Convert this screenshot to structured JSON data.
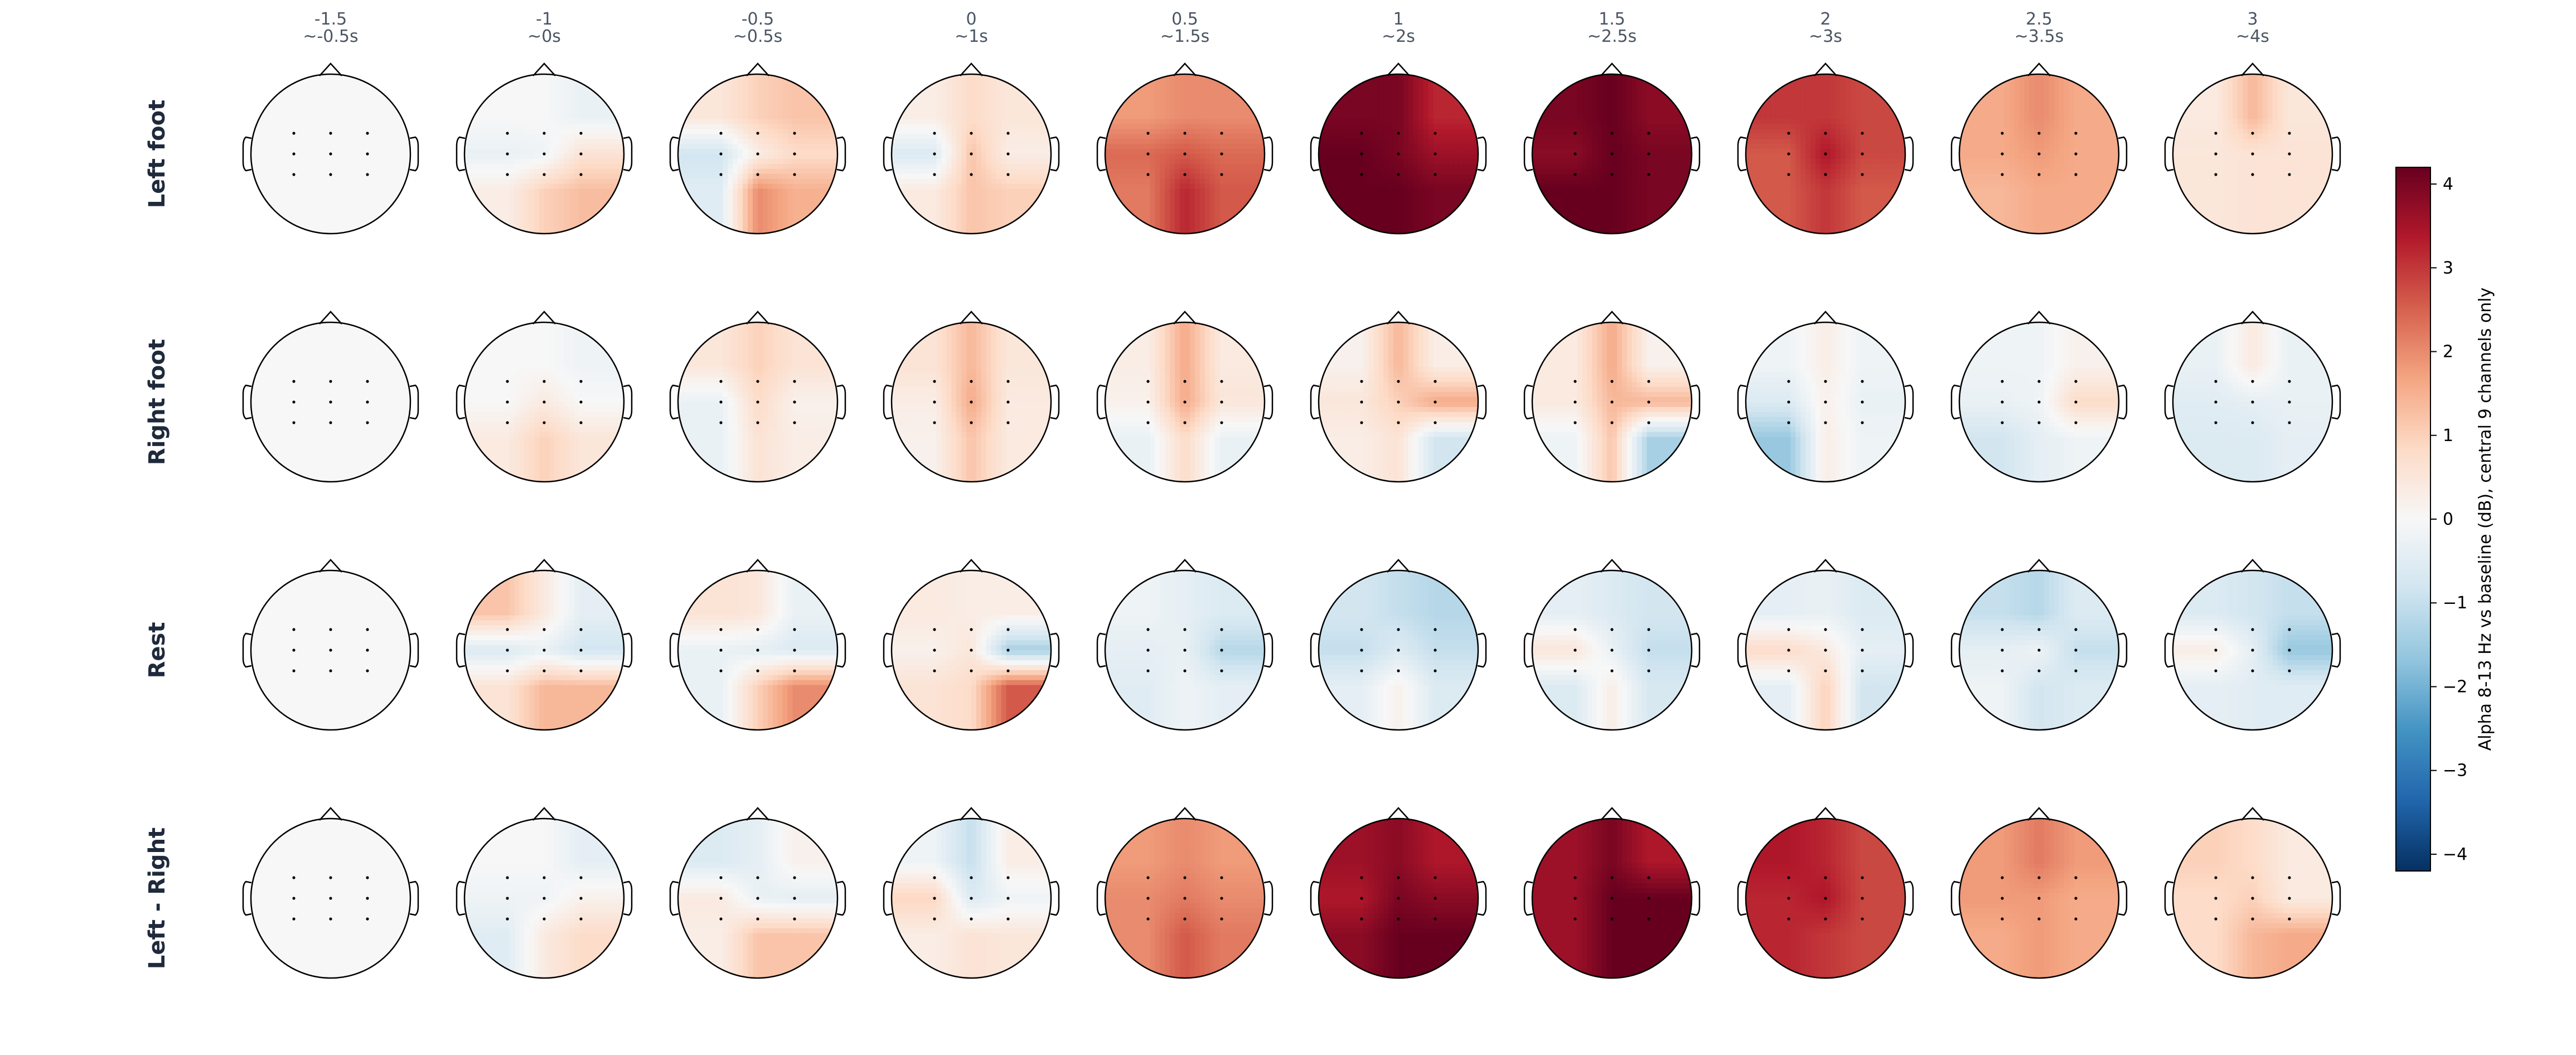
{
  "chart_data": {
    "type": "heatmap",
    "description_kind": "topomap_grid",
    "colorbar": {
      "label": "Alpha 8-13 Hz vs baseline (dB), central 9 channels only",
      "range": [
        -4.2,
        4.2
      ],
      "ticks": [
        "4",
        "3",
        "2",
        "1",
        "0",
        "−1",
        "−2",
        "−3",
        "−4"
      ],
      "tick_values": [
        4,
        3,
        2,
        1,
        0,
        -1,
        -2,
        -3,
        -4
      ],
      "colormap": "RdBu_r"
    },
    "columns": [
      {
        "t": "-1.5",
        "sub": "~-0.5s"
      },
      {
        "t": "-1",
        "sub": "~0s"
      },
      {
        "t": "-0.5",
        "sub": "~0.5s"
      },
      {
        "t": "0",
        "sub": "~1s"
      },
      {
        "t": "0.5",
        "sub": "~1.5s"
      },
      {
        "t": "1",
        "sub": "~2s"
      },
      {
        "t": "1.5",
        "sub": "~2.5s"
      },
      {
        "t": "2",
        "sub": "~3s"
      },
      {
        "t": "2.5",
        "sub": "~3.5s"
      },
      {
        "t": "3",
        "sub": "~4s"
      }
    ],
    "rows": [
      {
        "name": "Left foot",
        "maps": [
          [
            0,
            0,
            0,
            0,
            0,
            0,
            0,
            0,
            0
          ],
          [
            0,
            0,
            -0.3,
            -0.3,
            -0.2,
            0.6,
            0.3,
            1.0,
            1.3
          ],
          [
            0.5,
            1.0,
            1.2,
            -0.8,
            0.3,
            0.8,
            -0.5,
            2.0,
            1.5
          ],
          [
            0.3,
            0.8,
            0.5,
            -0.6,
            1.2,
            0.3,
            0.4,
            1.2,
            1.0
          ],
          [
            1.8,
            2.0,
            2.0,
            2.4,
            2.6,
            2.4,
            2.2,
            3.2,
            2.6
          ],
          [
            4.0,
            4.0,
            3.2,
            4.2,
            4.0,
            3.6,
            4.2,
            4.2,
            4.0
          ],
          [
            4.0,
            4.2,
            3.8,
            3.8,
            4.2,
            4.0,
            4.2,
            4.2,
            4.0
          ],
          [
            3.0,
            3.0,
            2.8,
            2.6,
            3.4,
            2.8,
            2.6,
            3.0,
            2.6
          ],
          [
            1.6,
            2.0,
            1.6,
            1.6,
            1.8,
            1.6,
            1.4,
            1.6,
            1.6
          ],
          [
            0.4,
            1.4,
            0.5,
            0.5,
            0.6,
            0.6,
            0.5,
            0.6,
            0.6
          ]
        ]
      },
      {
        "name": "Right foot",
        "maps": [
          [
            0,
            0,
            0,
            0,
            0,
            0,
            0,
            0,
            0
          ],
          [
            0,
            0,
            -0.2,
            0,
            0.4,
            0,
            0.4,
            1.0,
            0.5
          ],
          [
            0.5,
            1.0,
            0.6,
            -0.3,
            0.8,
            0.2,
            -0.3,
            0.6,
            0.3
          ],
          [
            0.6,
            1.4,
            0.5,
            0.3,
            1.6,
            0.4,
            0.2,
            1.2,
            0.4
          ],
          [
            0.3,
            1.6,
            0.4,
            0.2,
            1.6,
            0.5,
            -0.3,
            0.8,
            -0.3
          ],
          [
            0.2,
            1.4,
            0.3,
            0.5,
            1.0,
            1.6,
            0.3,
            0.6,
            -0.8
          ],
          [
            0.4,
            1.6,
            0.2,
            0.4,
            1.4,
            1.4,
            -0.2,
            1.2,
            -1.4
          ],
          [
            -0.2,
            0.3,
            -0.2,
            -0.6,
            0.2,
            -0.3,
            -1.6,
            0.3,
            -0.2
          ],
          [
            -0.2,
            -0.2,
            0.2,
            -0.3,
            -0.2,
            0.8,
            -0.8,
            -0.4,
            -0.2
          ],
          [
            -0.3,
            0.4,
            -0.3,
            -0.5,
            -0.4,
            -0.3,
            -0.6,
            -0.6,
            -0.4
          ]
        ]
      },
      {
        "name": "Rest",
        "maps": [
          [
            0,
            0,
            0,
            0,
            0,
            0,
            0,
            0,
            0
          ],
          [
            1.2,
            0.4,
            -0.4,
            -0.6,
            -0.3,
            -0.8,
            0.6,
            1.4,
            1.4
          ],
          [
            0.6,
            0.5,
            -0.3,
            -0.3,
            -0.4,
            -0.6,
            -0.3,
            1.0,
            2.0
          ],
          [
            0.4,
            0.3,
            0.3,
            0.2,
            0.5,
            -1.4,
            0.6,
            0.8,
            2.6
          ],
          [
            -0.2,
            -0.4,
            -0.6,
            -0.4,
            -0.3,
            -1.2,
            -0.5,
            -0.2,
            -0.4
          ],
          [
            -0.8,
            -1.0,
            -1.2,
            -1.0,
            -0.6,
            -1.0,
            -0.4,
            0.2,
            -0.6
          ],
          [
            -0.4,
            -0.6,
            -0.8,
            0.5,
            -0.3,
            -1.0,
            -0.6,
            0.3,
            -0.7
          ],
          [
            -0.4,
            -0.3,
            -0.6,
            0.8,
            0.4,
            -0.4,
            -0.4,
            1.0,
            -0.8
          ],
          [
            -1.0,
            -1.2,
            -0.6,
            -0.4,
            -0.2,
            -1.0,
            -0.2,
            -0.8,
            -0.6
          ],
          [
            -0.6,
            -0.8,
            -1.0,
            0.3,
            -0.4,
            -1.6,
            -0.4,
            -0.5,
            -0.5
          ]
        ]
      },
      {
        "name": "Left - Right",
        "maps": [
          [
            0,
            0,
            0,
            0,
            0,
            0,
            0,
            0,
            0
          ],
          [
            0,
            0,
            -0.4,
            -0.2,
            -0.2,
            0.2,
            -0.5,
            0.4,
            0.8
          ],
          [
            -0.6,
            -0.4,
            0.2,
            0.4,
            -0.3,
            -0.4,
            0.3,
            1.2,
            1.2
          ],
          [
            -0.2,
            -1.0,
            0.3,
            0.9,
            -0.6,
            -0.2,
            0.3,
            0.6,
            0.5
          ],
          [
            1.8,
            2.0,
            1.8,
            2.0,
            2.2,
            2.0,
            2.0,
            2.6,
            2.2
          ],
          [
            3.6,
            3.8,
            3.4,
            3.4,
            4.0,
            3.8,
            3.8,
            4.2,
            4.2
          ],
          [
            3.6,
            4.0,
            3.4,
            3.6,
            4.2,
            4.2,
            3.6,
            4.2,
            4.2
          ],
          [
            3.4,
            3.2,
            2.8,
            3.2,
            3.4,
            2.8,
            3.2,
            3.0,
            2.8
          ],
          [
            1.8,
            2.2,
            1.8,
            1.8,
            1.8,
            1.6,
            1.6,
            1.8,
            1.6
          ],
          [
            1.0,
            0.8,
            0.4,
            0.8,
            1.0,
            0.4,
            0.8,
            1.4,
            1.6
          ]
        ]
      }
    ]
  }
}
